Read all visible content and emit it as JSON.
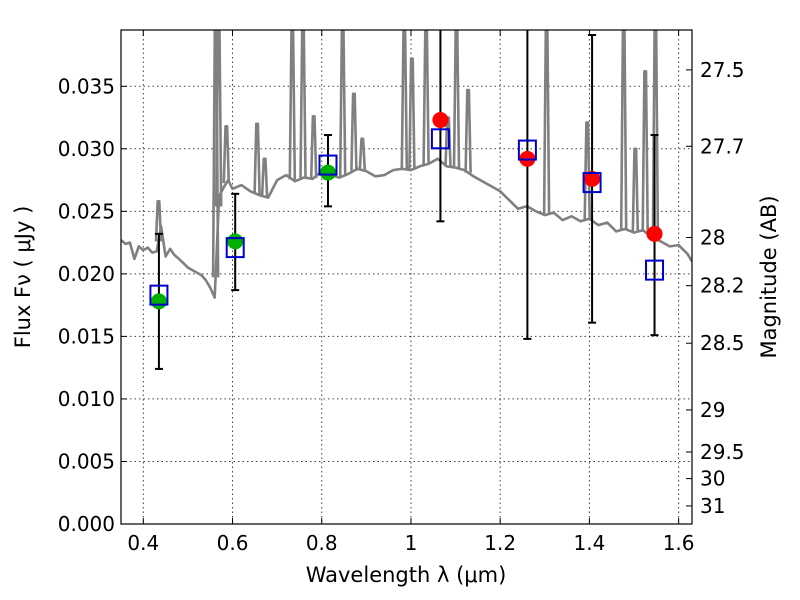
{
  "chart_data": {
    "type": "scatter",
    "xlabel": "Wavelength  λ (μm)",
    "ylabel": "Flux  Fν  ( μJy )",
    "y2label": "Magnitude (AB)",
    "xlim": [
      0.35,
      1.63
    ],
    "ylim": [
      0.0,
      0.0395
    ],
    "grid": true,
    "x_ticks": [
      0.4,
      0.6,
      0.8,
      1.0,
      1.2,
      1.4,
      1.6
    ],
    "x_tick_labels": [
      "0.4",
      "0.6",
      "0.8",
      "1",
      "1.2",
      "1.4",
      "1.6"
    ],
    "y_ticks": [
      0.0,
      0.005,
      0.01,
      0.015,
      0.02,
      0.025,
      0.03,
      0.035
    ],
    "y_tick_labels": [
      "0.000",
      "0.005",
      "0.010",
      "0.015",
      "0.020",
      "0.025",
      "0.030",
      "0.035"
    ],
    "y2_ticks": [
      27.5,
      27.7,
      28,
      28.2,
      28.5,
      29,
      29.5,
      30,
      31
    ],
    "y2_tick_labels": [
      "27.5",
      "27.7",
      "28",
      "28.2",
      "28.5",
      "29",
      "29.5",
      "30",
      "31"
    ],
    "colors": {
      "model": "#808080",
      "green_points": "#00b000",
      "red_points": "#ff0000",
      "squares": "#0000cc",
      "errorbars": "#000000"
    },
    "series": [
      {
        "kind": "model_spectrum",
        "x": [
          0.35,
          0.36,
          0.37,
          0.38,
          0.39,
          0.4,
          0.41,
          0.42,
          0.43,
          0.44,
          0.45,
          0.46,
          0.47,
          0.48,
          0.5,
          0.52,
          0.53,
          0.54,
          0.55,
          0.56,
          0.57,
          0.58,
          0.59,
          0.6,
          0.62,
          0.64,
          0.66,
          0.68,
          0.7,
          0.72,
          0.74,
          0.76,
          0.78,
          0.8,
          0.82,
          0.84,
          0.86,
          0.88,
          0.9,
          0.92,
          0.94,
          0.96,
          0.98,
          1.0,
          1.02,
          1.04,
          1.06,
          1.08,
          1.1,
          1.12,
          1.14,
          1.16,
          1.18,
          1.2,
          1.22,
          1.24,
          1.26,
          1.28,
          1.3,
          1.32,
          1.34,
          1.36,
          1.38,
          1.4,
          1.42,
          1.44,
          1.46,
          1.48,
          1.5,
          1.52,
          1.54,
          1.56,
          1.58,
          1.6,
          1.62,
          1.63
        ],
        "y": [
          0.0227,
          0.0224,
          0.0225,
          0.0212,
          0.0222,
          0.0219,
          0.0221,
          0.0217,
          0.0218,
          0.0238,
          0.0214,
          0.022,
          0.0215,
          0.0212,
          0.0205,
          0.0201,
          0.0199,
          0.0195,
          0.0189,
          0.0181,
          0.0262,
          0.0269,
          0.0275,
          0.0268,
          0.0271,
          0.0266,
          0.0263,
          0.0261,
          0.0275,
          0.0279,
          0.0274,
          0.0277,
          0.0276,
          0.0282,
          0.0279,
          0.0277,
          0.028,
          0.0284,
          0.0282,
          0.0278,
          0.0279,
          0.0283,
          0.0284,
          0.0283,
          0.0286,
          0.0288,
          0.0292,
          0.0286,
          0.0285,
          0.0283,
          0.0278,
          0.0274,
          0.027,
          0.0266,
          0.0259,
          0.0252,
          0.0254,
          0.025,
          0.0247,
          0.0249,
          0.0243,
          0.0246,
          0.0242,
          0.0244,
          0.0239,
          0.0241,
          0.0234,
          0.0236,
          0.0233,
          0.0235,
          0.0229,
          0.0226,
          0.0222,
          0.0223,
          0.0216,
          0.021
        ]
      },
      {
        "kind": "emission_lines",
        "lines": [
          {
            "x": 0.434,
            "peak": 0.0258
          },
          {
            "x": 0.562,
            "peak": 0.0395
          },
          {
            "x": 0.569,
            "peak": 0.0395
          },
          {
            "x": 0.586,
            "peak": 0.0318
          },
          {
            "x": 0.655,
            "peak": 0.032
          },
          {
            "x": 0.672,
            "peak": 0.0292
          },
          {
            "x": 0.734,
            "peak": 0.0395
          },
          {
            "x": 0.758,
            "peak": 0.0395
          },
          {
            "x": 0.782,
            "peak": 0.0326
          },
          {
            "x": 0.847,
            "peak": 0.0395
          },
          {
            "x": 0.872,
            "peak": 0.0344
          },
          {
            "x": 0.891,
            "peak": 0.0308
          },
          {
            "x": 0.985,
            "peak": 0.0395
          },
          {
            "x": 1.002,
            "peak": 0.0372
          },
          {
            "x": 1.034,
            "peak": 0.0395
          },
          {
            "x": 1.083,
            "peak": 0.0325
          },
          {
            "x": 1.102,
            "peak": 0.0395
          },
          {
            "x": 1.128,
            "peak": 0.0347
          },
          {
            "x": 1.304,
            "peak": 0.0395
          },
          {
            "x": 1.395,
            "peak": 0.0321
          },
          {
            "x": 1.477,
            "peak": 0.0395
          },
          {
            "x": 1.503,
            "peak": 0.03
          },
          {
            "x": 1.525,
            "peak": 0.0362
          },
          {
            "x": 1.548,
            "peak": 0.0395
          }
        ]
      },
      {
        "kind": "photometry_green",
        "x": [
          0.435,
          0.606,
          0.814
        ],
        "y": [
          0.0178,
          0.0226,
          0.0281
        ]
      },
      {
        "kind": "photometry_red",
        "x": [
          1.066,
          1.261,
          1.406,
          1.546
        ],
        "y": [
          0.0323,
          0.0292,
          0.0276,
          0.0232
        ]
      },
      {
        "kind": "model_bandpass_squares",
        "x": [
          0.435,
          0.606,
          0.814,
          1.066,
          1.261,
          1.406,
          1.546
        ],
        "y": [
          0.0183,
          0.0221,
          0.0287,
          0.0308,
          0.0299,
          0.0273,
          0.0203
        ]
      },
      {
        "kind": "errorbars",
        "x": [
          0.435,
          0.606,
          0.814,
          1.066,
          1.261,
          1.406,
          1.546
        ],
        "lower": [
          0.0124,
          0.0187,
          0.0254,
          0.0242,
          0.0148,
          0.0161,
          0.0151
        ],
        "upper": [
          0.0232,
          0.0264,
          0.0311,
          0.0395,
          0.0395,
          0.0391,
          0.0311
        ]
      }
    ]
  }
}
